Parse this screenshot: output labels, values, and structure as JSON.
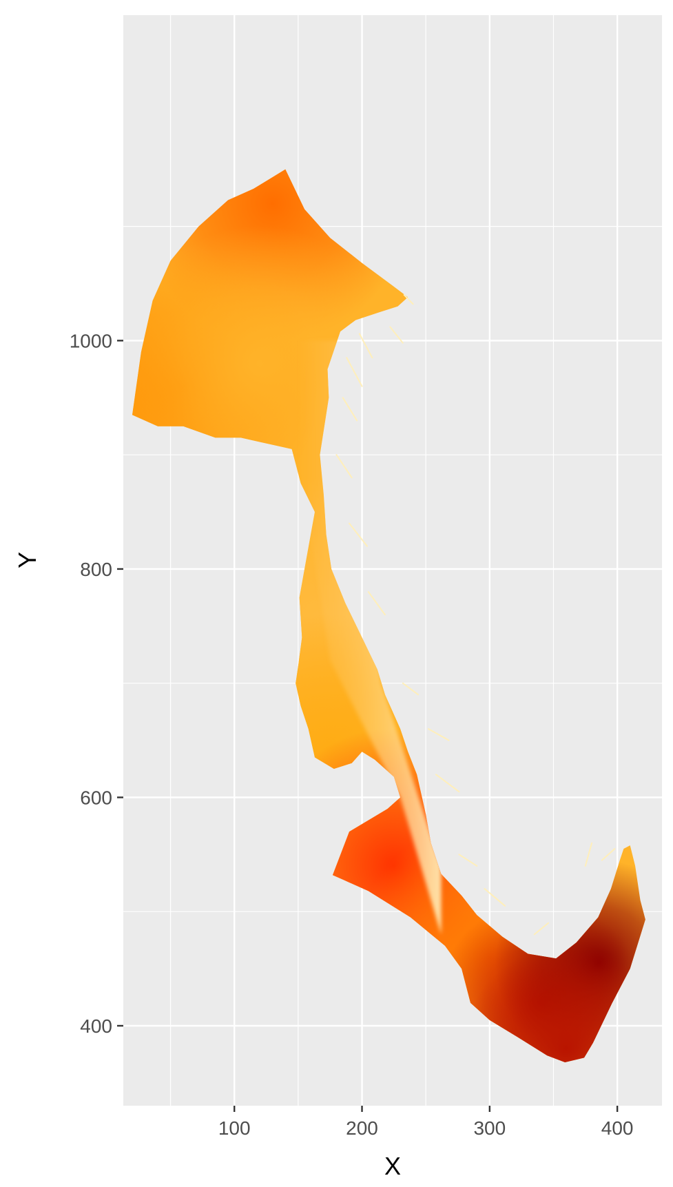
{
  "chart_data": {
    "type": "heatmap",
    "title": "",
    "xlabel": "X",
    "ylabel": "Y",
    "xlim": [
      13,
      435
    ],
    "ylim": [
      330,
      1285
    ],
    "x_ticks": [
      100,
      200,
      300,
      400
    ],
    "y_ticks": [
      400,
      600,
      800,
      1000
    ],
    "x_tick_labels": [
      "100",
      "200",
      "300",
      "400"
    ],
    "y_tick_labels": [
      "400",
      "600",
      "800",
      "1000"
    ],
    "grid": true,
    "legend": "none",
    "panel_background": "#ebebeb",
    "gridline_color": "#ffffff",
    "color_scale": [
      "#fff7c8",
      "#ffd080",
      "#ffa500",
      "#ff3300",
      "#8b0000"
    ],
    "outline": [
      [
        20,
        935
      ],
      [
        27,
        990
      ],
      [
        36,
        1035
      ],
      [
        50,
        1070
      ],
      [
        72,
        1100
      ],
      [
        95,
        1123
      ],
      [
        115,
        1133
      ],
      [
        140,
        1150
      ],
      [
        155,
        1115
      ],
      [
        175,
        1090
      ],
      [
        200,
        1068
      ],
      [
        223,
        1049
      ],
      [
        236,
        1038
      ],
      [
        228,
        1030
      ],
      [
        214,
        1025
      ],
      [
        195,
        1018
      ],
      [
        183,
        1008
      ],
      [
        173,
        975
      ],
      [
        174,
        950
      ],
      [
        167,
        900
      ],
      [
        170,
        865
      ],
      [
        172,
        830
      ],
      [
        176,
        800
      ],
      [
        187,
        770
      ],
      [
        200,
        740
      ],
      [
        212,
        712
      ],
      [
        218,
        690
      ],
      [
        222,
        680
      ],
      [
        230,
        660
      ],
      [
        236,
        640
      ],
      [
        243,
        620
      ],
      [
        250,
        585
      ],
      [
        254,
        560
      ],
      [
        262,
        533
      ],
      [
        278,
        514
      ],
      [
        290,
        497
      ],
      [
        310,
        478
      ],
      [
        330,
        463
      ],
      [
        352,
        459
      ],
      [
        368,
        473
      ],
      [
        385,
        495
      ],
      [
        395,
        520
      ],
      [
        402,
        545
      ],
      [
        405,
        555
      ],
      [
        410,
        558
      ],
      [
        414,
        540
      ],
      [
        418,
        510
      ],
      [
        422,
        493
      ],
      [
        410,
        450
      ],
      [
        396,
        420
      ],
      [
        381,
        385
      ],
      [
        374,
        372
      ],
      [
        359,
        368
      ],
      [
        345,
        374
      ],
      [
        322,
        390
      ],
      [
        300,
        405
      ],
      [
        285,
        420
      ],
      [
        278,
        450
      ],
      [
        265,
        470
      ],
      [
        238,
        495
      ],
      [
        205,
        518
      ],
      [
        185,
        528
      ],
      [
        177,
        532
      ],
      [
        190,
        570
      ],
      [
        205,
        580
      ],
      [
        220,
        590
      ],
      [
        230,
        600
      ],
      [
        225,
        618
      ],
      [
        210,
        633
      ],
      [
        200,
        640
      ],
      [
        192,
        630
      ],
      [
        178,
        625
      ],
      [
        163,
        635
      ],
      [
        158,
        660
      ],
      [
        152,
        680
      ],
      [
        148,
        700
      ],
      [
        150,
        715
      ],
      [
        153,
        740
      ],
      [
        151,
        775
      ],
      [
        155,
        800
      ],
      [
        163,
        850
      ],
      [
        152,
        875
      ],
      [
        145,
        905
      ],
      [
        105,
        915
      ],
      [
        85,
        915
      ],
      [
        60,
        925
      ],
      [
        40,
        925
      ]
    ],
    "hotspots": [
      {
        "x": 130,
        "y": 1120,
        "value": 0.62
      },
      {
        "x": 60,
        "y": 960,
        "value": 0.55
      },
      {
        "x": 120,
        "y": 980,
        "value": 0.42
      },
      {
        "x": 165,
        "y": 760,
        "value": 0.38
      },
      {
        "x": 175,
        "y": 640,
        "value": 0.46
      },
      {
        "x": 225,
        "y": 540,
        "value": 0.75
      },
      {
        "x": 300,
        "y": 460,
        "value": 0.6
      },
      {
        "x": 340,
        "y": 420,
        "value": 0.88
      },
      {
        "x": 385,
        "y": 455,
        "value": 1.0
      },
      {
        "x": 360,
        "y": 380,
        "value": 0.9
      }
    ],
    "coastal_fringe_value": 0.05
  }
}
